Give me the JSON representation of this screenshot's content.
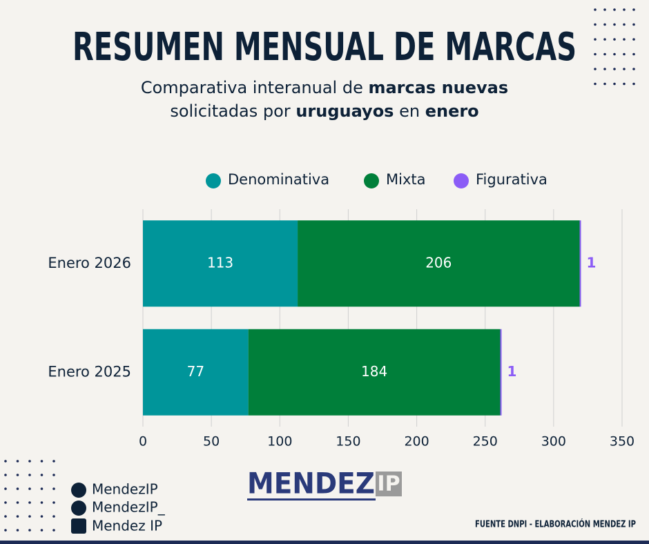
{
  "header": {
    "title": "RESUMEN MENSUAL DE MARCAS",
    "subtitle_lines": [
      [
        {
          "text": "Comparativa interanual de ",
          "bold": false
        },
        {
          "text": "marcas nuevas",
          "bold": true
        }
      ],
      [
        {
          "text": "solicitadas por ",
          "bold": false
        },
        {
          "text": "uruguayos",
          "bold": true
        },
        {
          "text": " en ",
          "bold": false
        },
        {
          "text": "enero",
          "bold": true
        }
      ]
    ]
  },
  "chart_data": {
    "type": "bar",
    "orientation": "horizontal",
    "stacked": true,
    "categories": [
      "Enero 2026",
      "Enero 2025"
    ],
    "series": [
      {
        "name": "Denominativa",
        "color": "#00959a",
        "values": [
          113,
          77
        ],
        "label_position": "inside"
      },
      {
        "name": "Mixta",
        "color": "#007f3a",
        "values": [
          206,
          184
        ],
        "label_position": "inside"
      },
      {
        "name": "Figurativa",
        "color": "#8b5cf6",
        "values": [
          1,
          1
        ],
        "label_position": "outside"
      }
    ],
    "xlim": [
      0,
      350
    ],
    "xticks": [
      0,
      50,
      100,
      150,
      200,
      250,
      300,
      350
    ],
    "grid": true,
    "legend": "top"
  },
  "footer": {
    "socials": [
      "MendezIP",
      "MendezIP_",
      "Mendez IP"
    ],
    "logo": {
      "name": "MENDEZ",
      "suffix": "IP"
    },
    "source": "FUENTE DNPI - ELABORACIÓN MENDEZ IP"
  }
}
